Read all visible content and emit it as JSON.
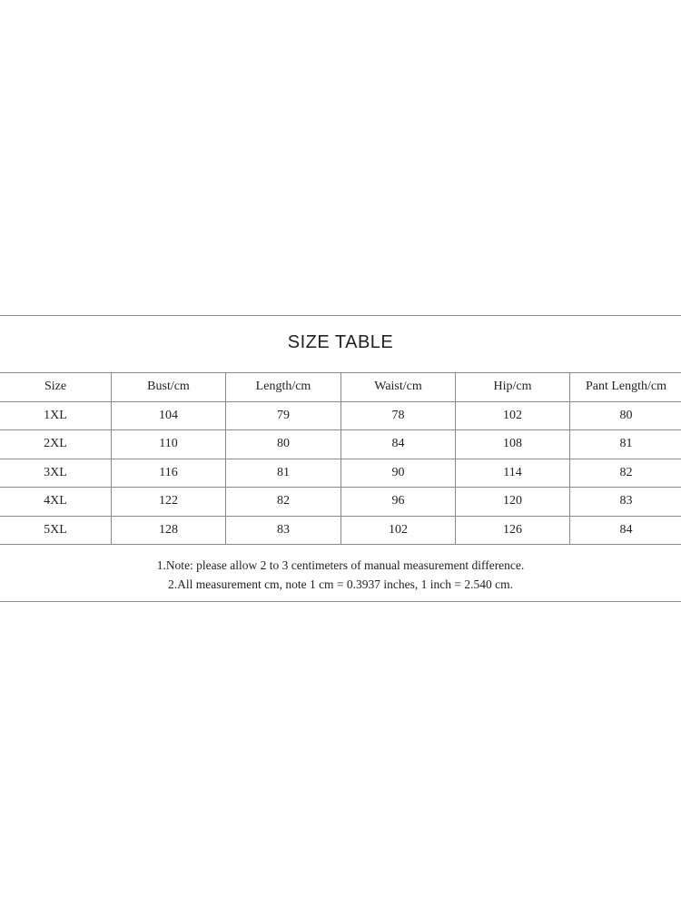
{
  "title": "SIZE  TABLE",
  "table": {
    "headers": [
      "Size",
      "Bust/cm",
      "Length/cm",
      "Waist/cm",
      "Hip/cm",
      "Pant Length/cm"
    ],
    "rows": [
      [
        "1XL",
        "104",
        "79",
        "78",
        "102",
        "80"
      ],
      [
        "2XL",
        "110",
        "80",
        "84",
        "108",
        "81"
      ],
      [
        "3XL",
        "116",
        "81",
        "90",
        "114",
        "82"
      ],
      [
        "4XL",
        "122",
        "82",
        "96",
        "120",
        "83"
      ],
      [
        "5XL",
        "128",
        "83",
        "102",
        "126",
        "84"
      ]
    ]
  },
  "notes": [
    "1.Note: please allow 2 to 3 centimeters of manual measurement difference.",
    "2.All measurement cm, note 1 cm = 0.3937 inches, 1 inch = 2.540 cm."
  ]
}
